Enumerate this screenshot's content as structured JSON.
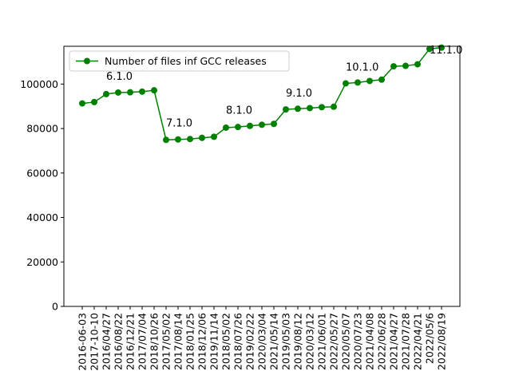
{
  "chart_data": {
    "type": "line",
    "categories": [
      "2016-06-03",
      "2017-10-10",
      "2016/04/27",
      "2016/08/22",
      "2016/12/21",
      "2017/07/04",
      "2018/10/26",
      "2017/05/02",
      "2017/08/14",
      "2018/01/25",
      "2018/12/06",
      "2019/11/14",
      "2018/05/02",
      "2018/07/26",
      "2019/02/22",
      "2020/03/04",
      "2021/05/14",
      "2019/05/03",
      "2019/08/12",
      "2020/03/12",
      "2021/06/01",
      "2022/05/27",
      "2020/05/07",
      "2020/07/23",
      "2021/04/08",
      "2022/06/28",
      "2021/04/27",
      "2021/07/28",
      "2022/04/21",
      "2022/05/6",
      "2022/08/19"
    ],
    "series": [
      {
        "name": "Number of files inf GCC releases",
        "color": "#008000",
        "marker": "circle",
        "values": [
          91300,
          91900,
          95500,
          96200,
          96300,
          96600,
          97200,
          74900,
          75100,
          75300,
          75800,
          76300,
          80400,
          80700,
          81200,
          81700,
          82100,
          88600,
          88900,
          89200,
          89600,
          89800,
          100300,
          100700,
          101400,
          102000,
          108000,
          108200,
          108900,
          115800,
          116400
        ]
      }
    ],
    "annotations": [
      {
        "text": "6.1.0",
        "index": 2,
        "y": 102000
      },
      {
        "text": "7.1.0",
        "index": 7,
        "y": 81000
      },
      {
        "text": "8.1.0",
        "index": 12,
        "y": 86600
      },
      {
        "text": "9.1.0",
        "index": 17,
        "y": 94300
      },
      {
        "text": "10.1.0",
        "index": 22,
        "y": 106000
      },
      {
        "text": "11.1.0",
        "index": 29,
        "y": 113800
      }
    ],
    "ylim": [
      0,
      117000
    ],
    "yticks": [
      0,
      20000,
      40000,
      60000,
      80000,
      100000
    ],
    "legend": "upper left",
    "title": "",
    "xlabel": "",
    "ylabel": "",
    "grid": false
  }
}
